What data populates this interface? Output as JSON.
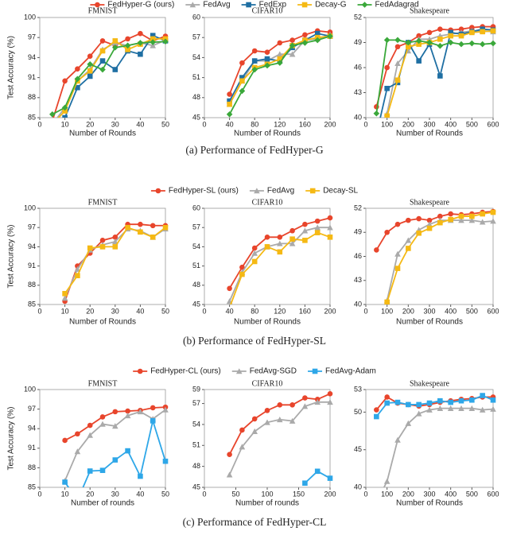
{
  "captions": [
    "(a)  Performance of FedHyper-G",
    "(b)  Performance of FedHyper-SL",
    "(c)  Performance of FedHyper-CL"
  ],
  "chart_data": [
    {
      "type": "line",
      "title": "FMNIST",
      "ylabel": "Test Accuracy (%)",
      "xlabel": "Number of Rounds",
      "x": [
        5,
        10,
        15,
        20,
        25,
        30,
        35,
        40,
        45,
        50
      ],
      "xlim": [
        0,
        50
      ],
      "xticks": [
        0,
        10,
        20,
        30,
        40,
        50
      ],
      "ylim": [
        85,
        100
      ],
      "yticks": [
        85,
        88,
        91,
        94,
        97,
        100
      ],
      "series": [
        {
          "name": "FedHyper-G (ours)",
          "color": "#e8452c",
          "marker": "circle",
          "values": [
            84.5,
            90.5,
            92.3,
            94.2,
            96.5,
            95.8,
            96.8,
            97.6,
            96.5,
            97.2
          ]
        },
        {
          "name": "FedAvg",
          "color": "#aaaaaa",
          "marker": "triangle",
          "values": [
            84,
            86.5,
            90.5,
            92.2,
            95.2,
            96.2,
            95.8,
            96.2,
            95.8,
            96.6
          ]
        },
        {
          "name": "FedExp",
          "color": "#1f6fa3",
          "marker": "square",
          "values": [
            83,
            85,
            89.5,
            91.2,
            93.5,
            92.2,
            95,
            94.5,
            97.3,
            96.5
          ]
        },
        {
          "name": "Decay-G",
          "color": "#f5b914",
          "marker": "square",
          "values": [
            84,
            86,
            90.5,
            92,
            95,
            96.5,
            95.2,
            96,
            96.8,
            96.8
          ]
        },
        {
          "name": "FedAdagrad",
          "color": "#3aa83a",
          "marker": "diamond",
          "values": [
            85.5,
            86.5,
            90.8,
            93,
            92.2,
            95.5,
            95.8,
            96.2,
            96.3,
            96.4
          ]
        }
      ]
    },
    {
      "type": "line",
      "title": "CIFAR10",
      "xlabel": "Number of Rounds",
      "x": [
        40,
        60,
        80,
        100,
        120,
        140,
        160,
        180,
        200
      ],
      "xlim": [
        0,
        200
      ],
      "xticks": [
        0,
        40,
        80,
        120,
        160,
        200
      ],
      "ylim": [
        45,
        60
      ],
      "yticks": [
        45,
        48,
        51,
        54,
        57,
        60
      ],
      "series": [
        {
          "name": "FedHyper-G (ours)",
          "color": "#e8452c",
          "marker": "circle",
          "values": [
            48.5,
            53.2,
            55,
            54.8,
            56.2,
            56.6,
            57.4,
            58,
            57.8
          ]
        },
        {
          "name": "FedAvg",
          "color": "#aaaaaa",
          "marker": "triangle",
          "values": [
            47,
            50.5,
            53.5,
            53.5,
            54.5,
            54.5,
            56.6,
            56.8,
            57.4
          ]
        },
        {
          "name": "FedExp",
          "color": "#1f6fa3",
          "marker": "square",
          "values": [
            47.5,
            51,
            53.5,
            53.8,
            53.5,
            55.5,
            56.6,
            57.6,
            57.2
          ]
        },
        {
          "name": "Decay-G",
          "color": "#f5b914",
          "marker": "square",
          "values": [
            47,
            50.5,
            52.5,
            53,
            53.8,
            55.8,
            56.6,
            57,
            57.2
          ]
        },
        {
          "name": "FedAdagrad",
          "color": "#3aa83a",
          "marker": "diamond",
          "values": [
            45.5,
            49,
            52.2,
            52.8,
            53.2,
            55.8,
            56.2,
            56.6,
            57.2
          ]
        }
      ]
    },
    {
      "type": "line",
      "title": "Shakespeare",
      "xlabel": "Number of Rounds",
      "x": [
        50,
        100,
        150,
        200,
        250,
        300,
        350,
        400,
        450,
        500,
        550,
        600
      ],
      "xlim": [
        0,
        600
      ],
      "xticks": [
        0,
        100,
        200,
        300,
        400,
        500,
        600
      ],
      "ylim": [
        40,
        52
      ],
      "yticks": [
        40,
        43,
        46,
        49,
        52
      ],
      "series": [
        {
          "name": "FedHyper-G (ours)",
          "color": "#e8452c",
          "marker": "circle",
          "values": [
            41.3,
            46,
            48.5,
            49,
            49.8,
            50.2,
            50.6,
            50.5,
            50.6,
            50.8,
            50.9,
            50.9
          ]
        },
        {
          "name": "FedAvg",
          "color": "#aaaaaa",
          "marker": "triangle",
          "values": [
            38,
            40.5,
            46.5,
            48,
            49.4,
            49.4,
            49.8,
            50,
            50.2,
            50.4,
            50.4,
            50.3
          ]
        },
        {
          "name": "FedExp",
          "color": "#1f6fa3",
          "marker": "square",
          "values": [
            38,
            43.5,
            44.2,
            49,
            46.8,
            48.8,
            45,
            50.2,
            50,
            50.3,
            50.6,
            50.5
          ]
        },
        {
          "name": "Decay-G",
          "color": "#f5b914",
          "marker": "square",
          "values": [
            38,
            40.2,
            44.5,
            48.5,
            48.8,
            49,
            49.4,
            49.8,
            49.8,
            50.2,
            50.3,
            50.4
          ]
        },
        {
          "name": "FedAdagrad",
          "color": "#3aa83a",
          "marker": "diamond",
          "values": [
            40.5,
            49.3,
            49.3,
            49,
            49.2,
            49,
            48.6,
            49,
            48.8,
            48.9,
            48.8,
            48.9
          ]
        }
      ]
    },
    {
      "type": "line",
      "title": "FMNIST",
      "ylabel": "Test Accuracy (%)",
      "xlabel": "Number of Rounds",
      "x": [
        10,
        15,
        20,
        25,
        30,
        35,
        40,
        45,
        50
      ],
      "xlim": [
        0,
        50
      ],
      "xticks": [
        0,
        10,
        20,
        30,
        40,
        50
      ],
      "ylim": [
        85,
        100
      ],
      "yticks": [
        85,
        88,
        91,
        94,
        97,
        100
      ],
      "series": [
        {
          "name": "FedHyper-SL (ours)",
          "color": "#e8452c",
          "marker": "circle",
          "values": [
            85.5,
            91,
            93,
            95,
            95.5,
            97.5,
            97.5,
            97.3,
            97.3
          ]
        },
        {
          "name": "FedAvg",
          "color": "#aaaaaa",
          "marker": "triangle",
          "values": [
            86,
            90.5,
            93.5,
            94.3,
            94.8,
            96.8,
            96.5,
            95.5,
            96.8
          ]
        },
        {
          "name": "Decay-SL",
          "color": "#f5b914",
          "marker": "square",
          "values": [
            86.7,
            89.5,
            93.8,
            94,
            94,
            97,
            96.3,
            95.5,
            97
          ]
        }
      ]
    },
    {
      "type": "line",
      "title": "CIFAR10",
      "xlabel": "Number of Rounds",
      "x": [
        40,
        60,
        80,
        100,
        120,
        140,
        160,
        180,
        200
      ],
      "xlim": [
        0,
        200
      ],
      "xticks": [
        0,
        40,
        80,
        120,
        160,
        200
      ],
      "ylim": [
        45,
        60
      ],
      "yticks": [
        45,
        48,
        51,
        54,
        57,
        60
      ],
      "series": [
        {
          "name": "FedHyper-SL (ours)",
          "color": "#e8452c",
          "marker": "circle",
          "values": [
            47.5,
            50.8,
            53.8,
            55.5,
            55.5,
            56.5,
            57.5,
            58,
            58.5
          ]
        },
        {
          "name": "FedAvg",
          "color": "#aaaaaa",
          "marker": "triangle",
          "values": [
            45.5,
            50,
            53,
            54,
            54.5,
            54.5,
            56.5,
            57,
            57
          ]
        },
        {
          "name": "Decay-SL",
          "color": "#f5b914",
          "marker": "square",
          "values": [
            44.5,
            49.7,
            51.7,
            54,
            53.2,
            55.2,
            55,
            56.2,
            55.5
          ]
        }
      ]
    },
    {
      "type": "line",
      "title": "Shakespeare",
      "xlabel": "Number of Rounds",
      "x": [
        50,
        100,
        150,
        200,
        250,
        300,
        350,
        400,
        450,
        500,
        550,
        600
      ],
      "xlim": [
        0,
        600
      ],
      "xticks": [
        0,
        100,
        200,
        300,
        400,
        500,
        600
      ],
      "ylim": [
        40,
        52
      ],
      "yticks": [
        40,
        43,
        46,
        49,
        52
      ],
      "series": [
        {
          "name": "FedHyper-SL (ours)",
          "color": "#e8452c",
          "marker": "circle",
          "values": [
            46.8,
            49,
            50,
            50.5,
            50.7,
            50.5,
            51,
            51.3,
            51.2,
            51.3,
            51.5,
            51.6
          ]
        },
        {
          "name": "FedAvg",
          "color": "#aaaaaa",
          "marker": "triangle",
          "values": [
            38,
            40.5,
            46.3,
            48,
            49.3,
            50,
            50.5,
            50.5,
            50.5,
            50.5,
            50.3,
            50.4
          ]
        },
        {
          "name": "Decay-SL",
          "color": "#f5b914",
          "marker": "square",
          "values": [
            38,
            40.3,
            44.5,
            47,
            48.9,
            49.5,
            50.2,
            50.6,
            51,
            51,
            51.3,
            51.5
          ]
        }
      ]
    },
    {
      "type": "line",
      "title": "FMNIST",
      "ylabel": "Test Accuracy (%)",
      "xlabel": "Number of rounds",
      "x": [
        10,
        15,
        20,
        25,
        30,
        35,
        40,
        45,
        50
      ],
      "xlim": [
        0,
        50
      ],
      "xticks": [
        0,
        10,
        20,
        30,
        40,
        50
      ],
      "ylim": [
        85,
        100
      ],
      "yticks": [
        85,
        88,
        91,
        94,
        97,
        100
      ],
      "series": [
        {
          "name": "FedHyper-CL (ours)",
          "color": "#e8452c",
          "marker": "circle",
          "values": [
            92.2,
            93.2,
            94.5,
            95.8,
            96.6,
            96.7,
            96.8,
            97.2,
            97.3
          ]
        },
        {
          "name": "FedAvg-SGD",
          "color": "#aaaaaa",
          "marker": "triangle",
          "values": [
            86,
            90.5,
            93,
            94.7,
            94.4,
            96,
            96.6,
            95.5,
            96.9
          ]
        },
        {
          "name": "FedAvg-Adam",
          "color": "#2ea7e8",
          "marker": "square",
          "values": [
            85.8,
            83,
            87.5,
            87.6,
            89.2,
            90.6,
            86.7,
            95.2,
            89
          ]
        }
      ]
    },
    {
      "type": "line",
      "title": "CIFAR10",
      "xlabel": "Number of rounds",
      "x": [
        40,
        60,
        80,
        100,
        120,
        140,
        160,
        180,
        200
      ],
      "xlim": [
        0,
        200
      ],
      "xticks": [
        0,
        50,
        100,
        150,
        200
      ],
      "ylim": [
        45,
        59
      ],
      "yticks": [
        45,
        48,
        51,
        54,
        57,
        59
      ],
      "series": [
        {
          "name": "FedHyper-CL (ours)",
          "color": "#e8452c",
          "marker": "circle",
          "values": [
            49.7,
            53.2,
            54.8,
            56,
            56.8,
            56.8,
            57.8,
            57.6,
            58.4
          ]
        },
        {
          "name": "FedAvg-SGD",
          "color": "#aaaaaa",
          "marker": "triangle",
          "values": [
            46.8,
            50.8,
            53,
            54.3,
            54.7,
            54.5,
            56.6,
            57.2,
            57.2
          ]
        },
        {
          "name": "FedAvg-Adam",
          "color": "#2ea7e8",
          "marker": "square",
          "values": [
            null,
            null,
            null,
            null,
            null,
            null,
            45.6,
            47.3,
            46.3
          ]
        }
      ]
    },
    {
      "type": "line",
      "title": "Shakespeare",
      "xlabel": "Number of Rounds",
      "x": [
        50,
        100,
        150,
        200,
        250,
        300,
        350,
        400,
        450,
        500,
        550,
        600
      ],
      "xlim": [
        0,
        600
      ],
      "xticks": [
        0,
        100,
        200,
        300,
        400,
        500,
        600
      ],
      "ylim": [
        40,
        53
      ],
      "yticks": [
        40,
        45,
        50,
        53
      ],
      "series": [
        {
          "name": "FedHyper-CL (ours)",
          "color": "#e8452c",
          "marker": "circle",
          "values": [
            50.3,
            52,
            51.2,
            51,
            50.8,
            51,
            51.3,
            51.5,
            51.7,
            51.8,
            52,
            52
          ]
        },
        {
          "name": "FedAvg-SGD",
          "color": "#aaaaaa",
          "marker": "triangle",
          "values": [
            38,
            40.8,
            46.3,
            48.5,
            49.8,
            50.3,
            50.5,
            50.5,
            50.5,
            50.5,
            50.3,
            50.4
          ]
        },
        {
          "name": "FedAvg-Adam",
          "color": "#2ea7e8",
          "marker": "square",
          "values": [
            49.4,
            51.2,
            51.3,
            51,
            51,
            51.2,
            51.5,
            51.3,
            51.5,
            51.6,
            52.2,
            51.6
          ]
        }
      ]
    }
  ]
}
